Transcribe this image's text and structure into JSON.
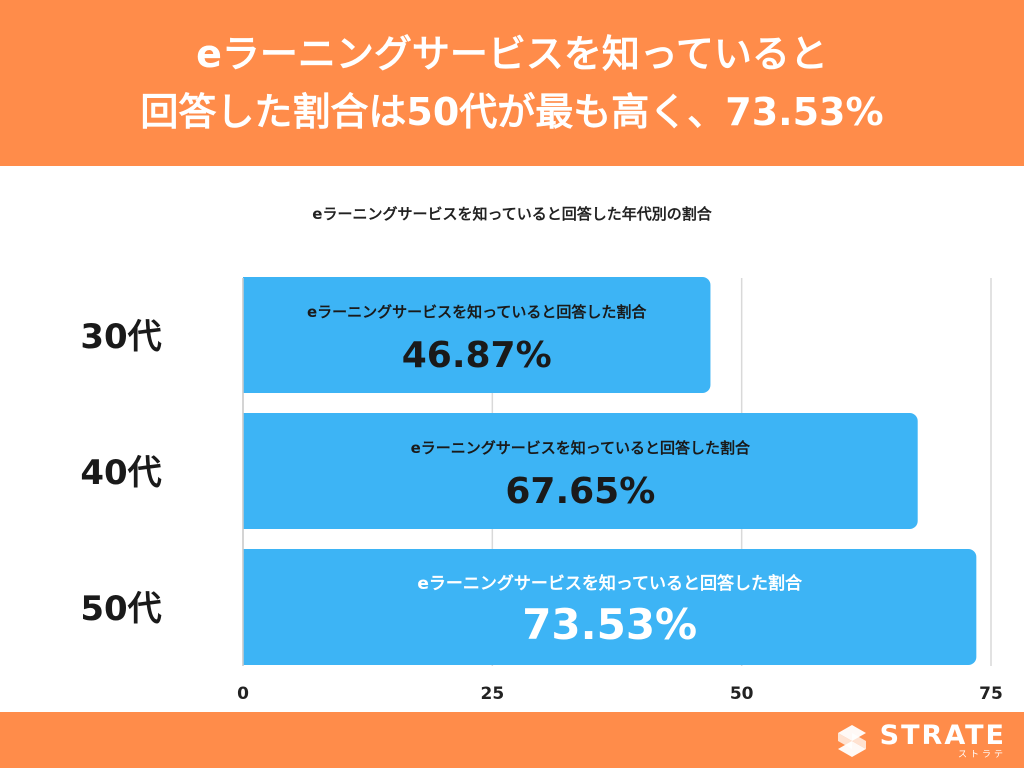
{
  "header": {
    "line1": "eラーニングサービスを知っていると",
    "line2": "回答した割合は50代が最も高く、73.53%"
  },
  "chart_data": {
    "type": "bar",
    "orientation": "horizontal",
    "title": "eラーニングサービスを知っていると回答した年代別の割合",
    "categories": [
      "30代",
      "40代",
      "50代"
    ],
    "series": [
      {
        "values": [
          46.87,
          67.65,
          73.53
        ],
        "bar_label": "eラーニングサービスを知っていると回答した割合",
        "value_labels": [
          "46.87%",
          "67.65%",
          "73.53%"
        ]
      }
    ],
    "xlim": [
      0,
      75
    ],
    "xticks": [
      "0",
      "25",
      "50",
      "75"
    ],
    "grid": true,
    "bar_color": "#3DB4F5"
  },
  "footer": {
    "logo_text": "STRATE",
    "logo_subtext": "ストラテ"
  },
  "colors": {
    "accent": "#FF8C4A",
    "bar": "#3DB4F5"
  }
}
